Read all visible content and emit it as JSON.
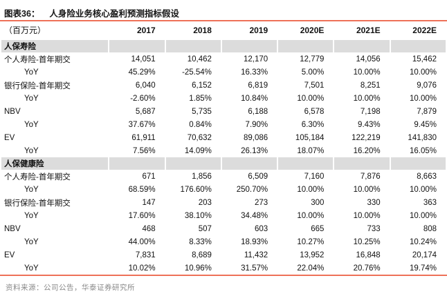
{
  "figure": {
    "label": "图表36：",
    "title": "人身险业务核心盈利预测指标假设"
  },
  "table": {
    "unit_label": "（百万元）",
    "columns": [
      "2017",
      "2018",
      "2019",
      "2020E",
      "2021E",
      "2022E"
    ],
    "sections": [
      {
        "name": "人保寿险",
        "rows": [
          {
            "label": "个人寿险-首年期交",
            "indent": false,
            "latin": false,
            "values": [
              "14,051",
              "10,462",
              "12,170",
              "12,779",
              "14,056",
              "15,462"
            ]
          },
          {
            "label": "YoY",
            "indent": true,
            "latin": true,
            "values": [
              "45.29%",
              "-25.54%",
              "16.33%",
              "5.00%",
              "10.00%",
              "10.00%"
            ]
          },
          {
            "label": "银行保险-首年期交",
            "indent": false,
            "latin": false,
            "values": [
              "6,040",
              "6,152",
              "6,819",
              "7,501",
              "8,251",
              "9,076"
            ]
          },
          {
            "label": "YoY",
            "indent": true,
            "latin": true,
            "values": [
              "-2.60%",
              "1.85%",
              "10.84%",
              "10.00%",
              "10.00%",
              "10.00%"
            ]
          },
          {
            "label": "NBV",
            "indent": false,
            "latin": true,
            "values": [
              "5,687",
              "5,735",
              "6,188",
              "6,578",
              "7,198",
              "7,879"
            ]
          },
          {
            "label": "YoY",
            "indent": true,
            "latin": true,
            "values": [
              "37.67%",
              "0.84%",
              "7.90%",
              "6.30%",
              "9.43%",
              "9.45%"
            ]
          },
          {
            "label": "EV",
            "indent": false,
            "latin": true,
            "values": [
              "61,911",
              "70,632",
              "89,086",
              "105,184",
              "122,219",
              "141,830"
            ]
          },
          {
            "label": "YoY",
            "indent": true,
            "latin": true,
            "values": [
              "7.56%",
              "14.09%",
              "26.13%",
              "18.07%",
              "16.20%",
              "16.05%"
            ]
          }
        ]
      },
      {
        "name": "人保健康险",
        "rows": [
          {
            "label": "个人寿险-首年期交",
            "indent": false,
            "latin": false,
            "values": [
              "671",
              "1,856",
              "6,509",
              "7,160",
              "7,876",
              "8,663"
            ]
          },
          {
            "label": "YoY",
            "indent": true,
            "latin": true,
            "values": [
              "68.59%",
              "176.60%",
              "250.70%",
              "10.00%",
              "10.00%",
              "10.00%"
            ]
          },
          {
            "label": "银行保险-首年期交",
            "indent": false,
            "latin": false,
            "values": [
              "147",
              "203",
              "273",
              "300",
              "330",
              "363"
            ]
          },
          {
            "label": "YoY",
            "indent": true,
            "latin": true,
            "values": [
              "17.60%",
              "38.10%",
              "34.48%",
              "10.00%",
              "10.00%",
              "10.00%"
            ]
          },
          {
            "label": "NBV",
            "indent": false,
            "latin": true,
            "values": [
              "468",
              "507",
              "603",
              "665",
              "733",
              "808"
            ]
          },
          {
            "label": "YoY",
            "indent": true,
            "latin": true,
            "values": [
              "44.00%",
              "8.33%",
              "18.93%",
              "10.27%",
              "10.25%",
              "10.24%"
            ]
          },
          {
            "label": "EV",
            "indent": false,
            "latin": true,
            "values": [
              "7,831",
              "8,689",
              "11,432",
              "13,952",
              "16,848",
              "20,174"
            ]
          },
          {
            "label": "YoY",
            "indent": true,
            "latin": true,
            "values": [
              "10.02%",
              "10.96%",
              "31.57%",
              "22.04%",
              "20.76%",
              "19.74%"
            ]
          }
        ]
      }
    ]
  },
  "source": "资料来源：公司公告，华泰证券研究所",
  "colors": {
    "accent_rule": "#ee7057",
    "section_band": "#dcdcdc",
    "source_text": "#8a8a8a"
  }
}
